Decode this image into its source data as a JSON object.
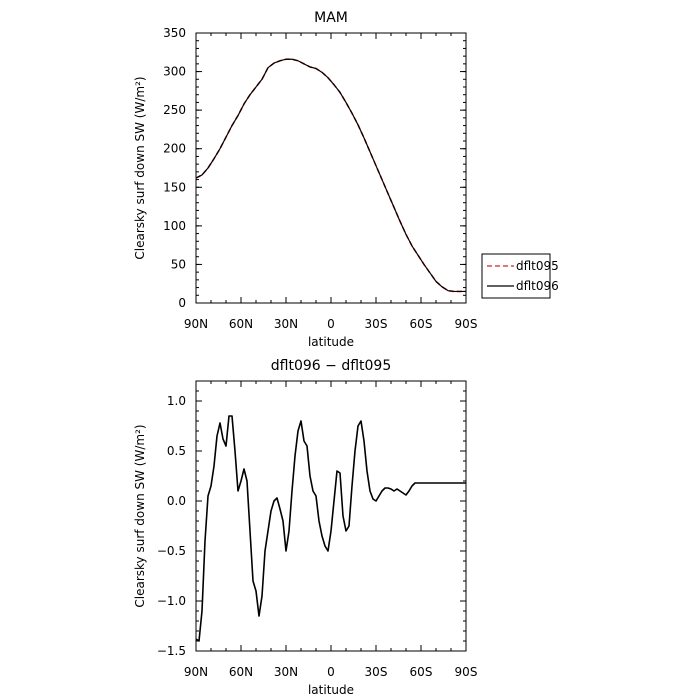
{
  "chart_data": [
    {
      "type": "line",
      "title": "MAM",
      "xlabel": "latitude",
      "ylabel": "Clearsky surf down SW (W/m²)",
      "xlim": [
        90,
        -90
      ],
      "ylim": [
        0,
        350
      ],
      "x_ticks": [
        {
          "value": 90,
          "label": "90N"
        },
        {
          "value": 60,
          "label": "60N"
        },
        {
          "value": 30,
          "label": "30N"
        },
        {
          "value": 0,
          "label": "0"
        },
        {
          "value": -30,
          "label": "30S"
        },
        {
          "value": -60,
          "label": "60S"
        },
        {
          "value": -90,
          "label": "90S"
        }
      ],
      "y_ticks": [
        {
          "value": 0,
          "label": "0"
        },
        {
          "value": 50,
          "label": "50"
        },
        {
          "value": 100,
          "label": "100"
        },
        {
          "value": 150,
          "label": "150"
        },
        {
          "value": 200,
          "label": "200"
        },
        {
          "value": 250,
          "label": "250"
        },
        {
          "value": 300,
          "label": "300"
        },
        {
          "value": 350,
          "label": "350"
        }
      ],
      "legend": {
        "placement": "right",
        "entries": [
          {
            "name": "dflt095",
            "color": "#d62020",
            "dash": "dashed"
          },
          {
            "name": "dflt096",
            "color": "#000000",
            "dash": "solid"
          }
        ]
      },
      "x": [
        90,
        86,
        82,
        78,
        74,
        70,
        66,
        62,
        58,
        54,
        50,
        46,
        42,
        38,
        34,
        30,
        26,
        22,
        18,
        14,
        10,
        6,
        2,
        -2,
        -6,
        -10,
        -14,
        -18,
        -22,
        -26,
        -30,
        -34,
        -38,
        -42,
        -46,
        -50,
        -54,
        -58,
        -62,
        -66,
        -70,
        -74,
        -78,
        -82,
        -86,
        -90
      ],
      "series": [
        {
          "name": "dflt095",
          "values": [
            162,
            166,
            175,
            187,
            200,
            215,
            230,
            243,
            258,
            270,
            280,
            290,
            305,
            311,
            314,
            316,
            316,
            314,
            310,
            306,
            304,
            299,
            292,
            283,
            273,
            260,
            246,
            231,
            214,
            196,
            178,
            160,
            142,
            124,
            106,
            89,
            74,
            62,
            50,
            39,
            28,
            21,
            16,
            15,
            15,
            15
          ]
        },
        {
          "name": "dflt096",
          "values": [
            162,
            166,
            175,
            187,
            200,
            215,
            230,
            243,
            258,
            270,
            280,
            290,
            305,
            311,
            314,
            316,
            316,
            314,
            310,
            306,
            304,
            299,
            292,
            283,
            273,
            260,
            246,
            231,
            214,
            196,
            178,
            160,
            142,
            124,
            106,
            89,
            74,
            62,
            50,
            39,
            28,
            21,
            16,
            15,
            15,
            15
          ]
        }
      ]
    },
    {
      "type": "line",
      "title": "dflt096 − dflt095",
      "xlabel": "latitude",
      "ylabel": "Clearsky surf down SW (W/m²)",
      "xlim": [
        90,
        -90
      ],
      "ylim": [
        -1.5,
        1.2
      ],
      "x_ticks": [
        {
          "value": 90,
          "label": "90N"
        },
        {
          "value": 60,
          "label": "60N"
        },
        {
          "value": 30,
          "label": "30N"
        },
        {
          "value": 0,
          "label": "0"
        },
        {
          "value": -30,
          "label": "30S"
        },
        {
          "value": -60,
          "label": "60S"
        },
        {
          "value": -90,
          "label": "90S"
        }
      ],
      "y_ticks": [
        {
          "value": -1.5,
          "label": "−1.5"
        },
        {
          "value": -1.0,
          "label": "−1.0"
        },
        {
          "value": -0.5,
          "label": "−0.5"
        },
        {
          "value": 0.0,
          "label": "0.0"
        },
        {
          "value": 0.5,
          "label": "0.5"
        },
        {
          "value": 1.0,
          "label": "1.0"
        }
      ],
      "x": [
        90,
        88,
        86,
        84,
        82,
        80,
        78,
        76,
        74,
        72,
        70,
        68,
        66,
        64,
        62,
        60,
        58,
        56,
        54,
        52,
        50,
        48,
        46,
        44,
        42,
        40,
        38,
        36,
        34,
        32,
        30,
        28,
        26,
        24,
        22,
        20,
        18,
        16,
        14,
        12,
        10,
        8,
        6,
        4,
        2,
        0,
        -2,
        -4,
        -6,
        -8,
        -10,
        -12,
        -14,
        -16,
        -18,
        -20,
        -22,
        -24,
        -26,
        -28,
        -30,
        -32,
        -34,
        -36,
        -38,
        -40,
        -42,
        -44,
        -46,
        -48,
        -50,
        -52,
        -54,
        -56,
        -58,
        -60,
        -62,
        -64,
        -66,
        -68,
        -70,
        -72,
        -74,
        -76,
        -78,
        -80,
        -82,
        -84,
        -86,
        -88,
        -90
      ],
      "series": [
        {
          "name": "dflt096 − dflt095",
          "values": [
            -1.38,
            -1.4,
            -1.1,
            -0.4,
            0.05,
            0.15,
            0.35,
            0.65,
            0.78,
            0.62,
            0.55,
            0.85,
            0.85,
            0.5,
            0.1,
            0.2,
            0.32,
            0.2,
            -0.3,
            -0.8,
            -0.9,
            -1.15,
            -0.95,
            -0.5,
            -0.3,
            -0.1,
            0.0,
            0.03,
            -0.08,
            -0.2,
            -0.5,
            -0.3,
            0.1,
            0.45,
            0.7,
            0.8,
            0.6,
            0.55,
            0.25,
            0.1,
            0.05,
            -0.2,
            -0.35,
            -0.45,
            -0.5,
            -0.3,
            0.0,
            0.3,
            0.28,
            -0.15,
            -0.3,
            -0.25,
            0.15,
            0.5,
            0.75,
            0.8,
            0.6,
            0.3,
            0.1,
            0.02,
            0.0,
            0.05,
            0.1,
            0.13,
            0.13,
            0.12,
            0.1,
            0.12,
            0.1,
            0.08,
            0.06,
            0.1,
            0.15,
            0.18,
            0.18,
            0.18,
            0.18,
            0.18,
            0.18,
            0.18,
            0.18,
            0.18,
            0.18,
            0.18,
            0.18,
            0.18,
            0.18,
            0.18,
            0.18,
            0.18,
            0.18
          ]
        }
      ]
    }
  ]
}
